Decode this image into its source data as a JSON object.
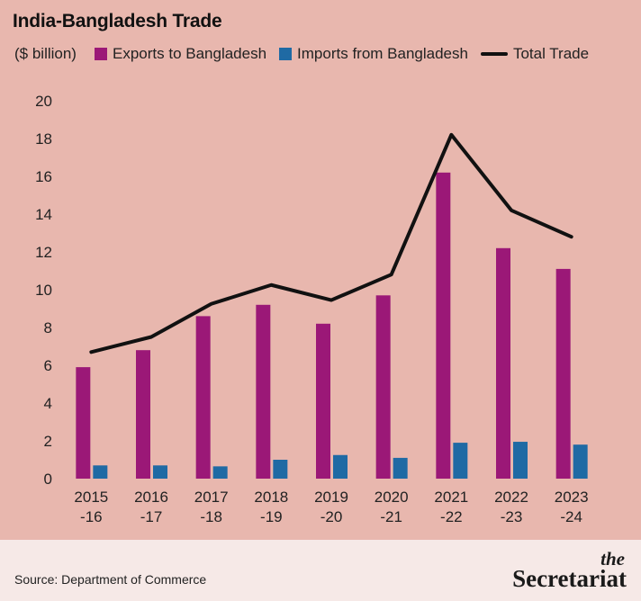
{
  "chart_data": {
    "type": "bar",
    "title": "India-Bangladesh Trade",
    "unit_label": "($ billion)",
    "categories": [
      [
        "2015",
        "-16"
      ],
      [
        "2016",
        "-17"
      ],
      [
        "2017",
        "-18"
      ],
      [
        "2018",
        "-19"
      ],
      [
        "2019",
        "-20"
      ],
      [
        "2020",
        "-21"
      ],
      [
        "2021",
        "-22"
      ],
      [
        "2022",
        "-23"
      ],
      [
        "2023",
        "-24"
      ]
    ],
    "series": [
      {
        "name": "Exports to Bangladesh",
        "type": "bar",
        "color": "#9b1877",
        "values": [
          5.9,
          6.8,
          8.6,
          9.2,
          8.2,
          9.7,
          16.2,
          12.2,
          11.1
        ]
      },
      {
        "name": "Imports from Bangladesh",
        "type": "bar",
        "color": "#1f6aa4",
        "values": [
          0.7,
          0.7,
          0.65,
          1.0,
          1.25,
          1.1,
          1.9,
          1.95,
          1.8
        ]
      },
      {
        "name": "Total Trade",
        "type": "line",
        "color": "#111111",
        "values": [
          6.7,
          7.5,
          9.25,
          10.25,
          9.45,
          10.8,
          18.2,
          14.2,
          12.8
        ]
      }
    ],
    "ylim": [
      0,
      20
    ],
    "yticks": [
      0,
      2,
      4,
      6,
      8,
      10,
      12,
      14,
      16,
      18,
      20
    ],
    "grid": false,
    "legend_position": "top"
  },
  "footer": {
    "source": "Source: Department of Commerce",
    "logo_top": "the",
    "logo_name": "Secretariat"
  }
}
